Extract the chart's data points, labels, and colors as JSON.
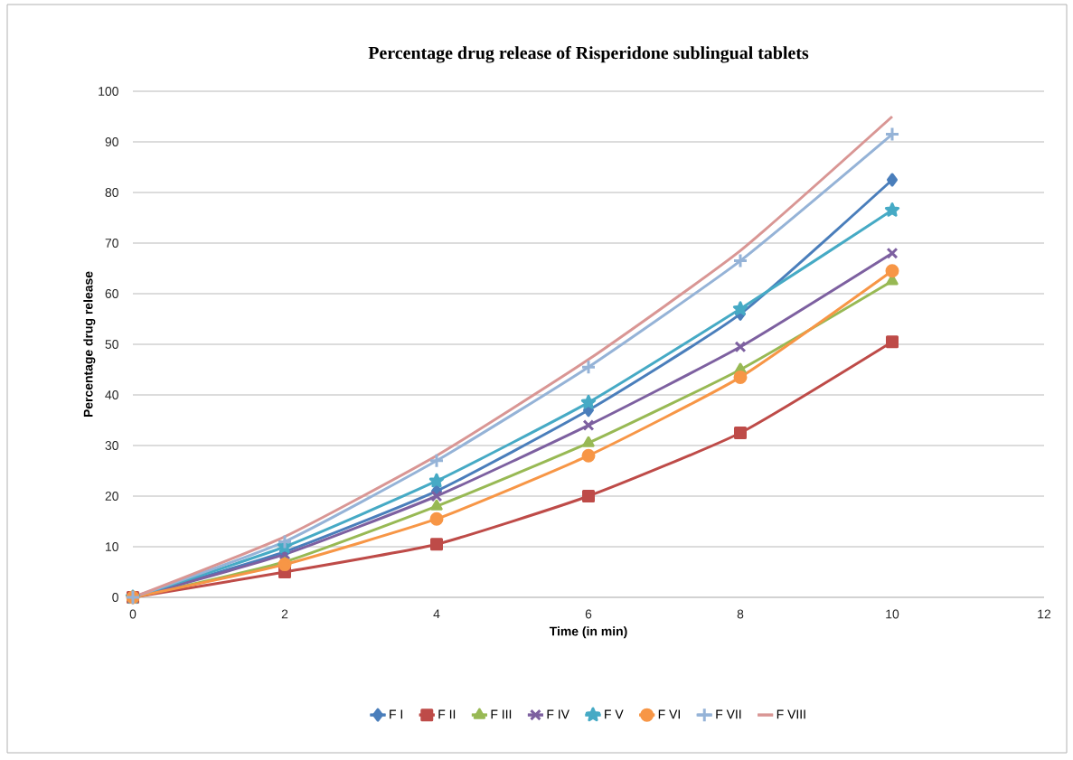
{
  "chart_data": {
    "type": "line",
    "title": "Percentage drug release of Risperidone sublingual tablets",
    "xlabel": "Time (in min)",
    "ylabel": "Percentage drug release",
    "x": [
      0,
      2,
      4,
      6,
      8,
      10
    ],
    "xlim": [
      0,
      12
    ],
    "xticks": [
      0,
      2,
      4,
      6,
      8,
      10,
      12
    ],
    "ylim": [
      0,
      100
    ],
    "yticks": [
      0,
      10,
      20,
      30,
      40,
      50,
      60,
      70,
      80,
      90,
      100
    ],
    "grid": "y",
    "legend": "bottom",
    "series": [
      {
        "name": "F I",
        "color": "#4a7ebb",
        "marker": "diamond",
        "values": [
          0,
          9,
          21,
          37,
          56,
          82.5
        ]
      },
      {
        "name": "F II",
        "color": "#be4b48",
        "marker": "square",
        "values": [
          0,
          5,
          10.5,
          20,
          32.5,
          50.5
        ]
      },
      {
        "name": "F III",
        "color": "#98b954",
        "marker": "triangle",
        "values": [
          0,
          7,
          18,
          30.5,
          45,
          62.5
        ]
      },
      {
        "name": "F IV",
        "color": "#7d60a0",
        "marker": "cross",
        "values": [
          0,
          8.5,
          20,
          34,
          49.5,
          68
        ]
      },
      {
        "name": "F V",
        "color": "#46aac5",
        "marker": "star",
        "values": [
          0,
          10,
          23,
          38.5,
          57,
          76.5
        ]
      },
      {
        "name": "F VI",
        "color": "#f79646",
        "marker": "circle",
        "values": [
          0,
          6.5,
          15.5,
          28,
          43.5,
          64.5
        ]
      },
      {
        "name": "F VII",
        "color": "#95b3d7",
        "marker": "plus",
        "values": [
          0,
          11,
          27,
          45.5,
          66.5,
          91.5
        ]
      },
      {
        "name": "F VIII",
        "color": "#d99694",
        "marker": "none",
        "values": [
          0,
          12,
          28,
          47,
          68.5,
          95
        ]
      }
    ]
  }
}
